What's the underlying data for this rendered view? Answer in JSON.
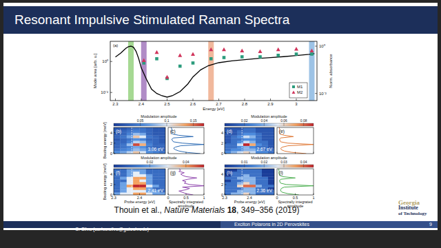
{
  "header": {
    "title": "Resonant Impulsive Stimulated Raman Spectra"
  },
  "citation": {
    "authors": "Thouin et al., ",
    "journal": "Nature Materials",
    "volume": " 18",
    "pages": ", 349–356 (2019)"
  },
  "footer": {
    "author": "C. Silva (carlos.silva@gatech.edu)",
    "talk": "Exciton Polarons in 2D Perovskites",
    "page": "9"
  },
  "logo": {
    "line1": "Georgia",
    "line2": "Institute",
    "line3": "of Technology"
  },
  "chart_data": [
    {
      "type": "scatter",
      "panel_label": "(a)",
      "xlabel": "Energy [eV]",
      "ylabel": "Mode area [arb. u.]",
      "y2label": "Norm. absorbance",
      "xlim": [
        2.28,
        3.08
      ],
      "xticks": [
        2.3,
        2.4,
        2.5,
        2.6,
        2.7,
        2.8,
        2.9,
        3
      ],
      "log": "y",
      "ylim": [
        0.003,
        20
      ],
      "yticks": [
        {
          "value": 0.01,
          "label": "10⁻²"
        },
        {
          "value": 1,
          "label": "10⁰"
        }
      ],
      "y2lim": [
        0.005,
        1.6
      ],
      "y2ticks": [
        {
          "value": 0.01,
          "label": "10⁻²"
        },
        {
          "value": 1,
          "label": "10⁰"
        }
      ],
      "legend": "bottom-right",
      "series": [
        {
          "type": "band",
          "x": [
            2.36,
            2.41,
            2.67,
            3.06
          ],
          "colors": [
            "#6abf4b",
            "#7b3fa0",
            "#e8895a",
            "#5b9bd5"
          ]
        },
        {
          "type": "line",
          "axis": "y2",
          "color": "#000000",
          "x": [
            2.3,
            2.32,
            2.34,
            2.35,
            2.36,
            2.37,
            2.38,
            2.39,
            2.4,
            2.42,
            2.44,
            2.46,
            2.48,
            2.5,
            2.52,
            2.55,
            2.58,
            2.6,
            2.63,
            2.66,
            2.7,
            2.75,
            2.8,
            2.85,
            2.9,
            2.95,
            3.0,
            3.05,
            3.07
          ],
          "values": [
            0.35,
            0.5,
            0.8,
            0.95,
            1.0,
            0.9,
            0.6,
            0.3,
            0.12,
            0.04,
            0.015,
            0.01,
            0.008,
            0.007,
            0.008,
            0.012,
            0.025,
            0.05,
            0.1,
            0.15,
            0.2,
            0.24,
            0.27,
            0.3,
            0.33,
            0.36,
            0.4,
            0.45,
            0.48
          ]
        },
        {
          "name": "M1",
          "type": "scatter",
          "marker": "square",
          "color": "#2c9c7d",
          "x": [
            2.41,
            2.46,
            2.5,
            2.55,
            2.6,
            2.67,
            2.72,
            2.79,
            2.86,
            2.93,
            3.0,
            3.06
          ],
          "values": [
            0.8,
            1.5,
            0.08,
            0.5,
            0.8,
            1.5,
            1.8,
            2,
            2,
            2.5,
            3,
            3
          ]
        },
        {
          "name": "M2",
          "type": "scatter",
          "marker": "triangle",
          "color": "#d1345b",
          "x": [
            2.41,
            2.46,
            2.5,
            2.55,
            2.6,
            2.67,
            2.72,
            2.79,
            2.86,
            2.93,
            3.0,
            3.06
          ],
          "values": [
            1.2,
            4,
            0.1,
            2.5,
            3,
            6,
            6,
            5,
            4.5,
            6,
            6.5,
            5
          ]
        }
      ]
    },
    {
      "type": "heatmap",
      "panel_label": "(b)",
      "annotation": "3.06 eV",
      "ylabel": "Beating energy [meV]",
      "tick_labels": "y",
      "xlim": [
        2.3,
        2.5
      ],
      "xticks": [
        2.3,
        2.4
      ],
      "ylim": [
        0,
        5
      ],
      "yticks": [
        0,
        2,
        4
      ],
      "reference_x": 2.37,
      "x": [
        2.3125,
        2.3375,
        2.3625,
        2.3875,
        2.4125,
        2.4375,
        2.4625,
        2.4875
      ],
      "y": [
        0.25,
        0.75,
        1.25,
        1.75,
        2.25,
        2.75,
        3.25,
        3.75,
        4.25,
        4.75
      ],
      "cells": [
        [
          0.06,
          0.07,
          0.09,
          0.12,
          0.1,
          0.06,
          0.05,
          0.04
        ],
        [
          0.04,
          0.05,
          0.06,
          0.08,
          0.07,
          0.05,
          0.04,
          0.03
        ],
        [
          0.03,
          0.04,
          0.05,
          0.07,
          0.06,
          0.04,
          0.03,
          0.03
        ],
        [
          0.03,
          0.04,
          0.08,
          0.16,
          0.13,
          0.05,
          0.03,
          0.03
        ],
        [
          0.03,
          0.03,
          0.05,
          0.09,
          0.08,
          0.04,
          0.03,
          0.02
        ],
        [
          0.02,
          0.03,
          0.04,
          0.06,
          0.05,
          0.03,
          0.03,
          0.02
        ],
        [
          0.03,
          0.04,
          0.07,
          0.12,
          0.1,
          0.04,
          0.03,
          0.02
        ],
        [
          0.02,
          0.03,
          0.05,
          0.08,
          0.07,
          0.03,
          0.02,
          0.02
        ],
        [
          0.02,
          0.03,
          0.04,
          0.05,
          0.04,
          0.03,
          0.02,
          0.02
        ],
        [
          0.02,
          0.02,
          0.03,
          0.04,
          0.04,
          0.03,
          0.02,
          0.02
        ]
      ],
      "colorbar": {
        "label": "Modulation amplitude",
        "range": [
          0,
          0.17
        ],
        "ticks": [
          0.05,
          0.1,
          0.15
        ]
      }
    },
    {
      "type": "line",
      "panel_label": "(c)",
      "orientation": "horizontal",
      "color": "#2f6db5",
      "tick_labels": false,
      "xlim": [
        0,
        1
      ],
      "xticks": [
        0,
        0.5,
        1
      ],
      "ylim": [
        0,
        5
      ],
      "y": [
        0,
        0.25,
        0.5,
        0.75,
        1,
        1.25,
        1.5,
        1.75,
        2,
        2.25,
        2.5,
        2.75,
        3,
        3.25,
        3.5,
        3.75,
        4,
        4.25,
        4.5,
        4.75,
        5
      ],
      "values": [
        0.9,
        0.5,
        0.3,
        0.2,
        0.15,
        0.2,
        0.35,
        1.0,
        0.4,
        0.15,
        0.12,
        0.1,
        0.15,
        0.7,
        0.3,
        0.12,
        0.1,
        0.08,
        0.12,
        0.1,
        0.08
      ]
    },
    {
      "type": "heatmap",
      "panel_label": "(d)",
      "annotation": "2.67 eV",
      "tick_labels": "y",
      "xlim": [
        2.3,
        2.5
      ],
      "xticks": [
        2.3,
        2.4
      ],
      "ylim": [
        0,
        5
      ],
      "yticks": [
        0,
        2,
        4
      ],
      "reference_x": 2.37,
      "x": [
        2.3125,
        2.3375,
        2.3625,
        2.3875,
        2.4125,
        2.4375,
        2.4625,
        2.4875
      ],
      "y": [
        0.25,
        0.75,
        1.25,
        1.75,
        2.25,
        2.75,
        3.25,
        3.75,
        4.25,
        4.75
      ],
      "cells": [
        [
          0.03,
          0.04,
          0.05,
          0.06,
          0.05,
          0.03,
          0.03,
          0.02
        ],
        [
          0.02,
          0.03,
          0.03,
          0.04,
          0.04,
          0.03,
          0.02,
          0.02
        ],
        [
          0.02,
          0.02,
          0.03,
          0.04,
          0.03,
          0.02,
          0.02,
          0.01
        ],
        [
          0.02,
          0.02,
          0.05,
          0.09,
          0.07,
          0.03,
          0.02,
          0.01
        ],
        [
          0.01,
          0.02,
          0.03,
          0.05,
          0.04,
          0.02,
          0.02,
          0.01
        ],
        [
          0.01,
          0.02,
          0.02,
          0.03,
          0.03,
          0.02,
          0.01,
          0.01
        ],
        [
          0.01,
          0.02,
          0.03,
          0.05,
          0.04,
          0.02,
          0.01,
          0.01
        ],
        [
          0.01,
          0.01,
          0.02,
          0.03,
          0.03,
          0.02,
          0.01,
          0.01
        ],
        [
          0.01,
          0.01,
          0.02,
          0.02,
          0.02,
          0.01,
          0.01,
          0.01
        ],
        [
          0.01,
          0.01,
          0.01,
          0.02,
          0.02,
          0.01,
          0.01,
          0.01
        ]
      ],
      "colorbar": {
        "label": "Modulation amplitude",
        "range": [
          0,
          0.09
        ],
        "ticks": [
          0.02,
          0.04,
          0.06,
          0.08
        ]
      }
    },
    {
      "type": "line",
      "panel_label": "(e)",
      "orientation": "horizontal",
      "color": "#e07b39",
      "tick_labels": false,
      "xlim": [
        0,
        1
      ],
      "xticks": [
        0,
        0.5,
        1
      ],
      "ylim": [
        0,
        5
      ],
      "y": [
        0,
        0.25,
        0.5,
        0.75,
        1,
        1.25,
        1.5,
        1.75,
        2,
        2.25,
        2.5,
        2.75,
        3,
        3.25,
        3.5,
        3.75,
        4,
        4.25,
        4.5,
        4.75,
        5
      ],
      "values": [
        0.8,
        0.4,
        0.2,
        0.12,
        0.1,
        0.15,
        0.3,
        1.0,
        0.3,
        0.1,
        0.08,
        0.07,
        0.1,
        0.45,
        0.2,
        0.08,
        0.07,
        0.06,
        0.08,
        0.07,
        0.06
      ]
    },
    {
      "type": "heatmap",
      "panel_label": "(f)",
      "annotation": "2.41 eV",
      "ylabel": "Beating energy [meV]",
      "xlabel": "Probe energy [eV]",
      "xlim": [
        2.3,
        2.5
      ],
      "xticks": [
        2.3,
        2.4
      ],
      "ylim": [
        0,
        5
      ],
      "yticks": [
        0,
        2,
        4
      ],
      "reference_x": 2.37,
      "x": [
        2.3125,
        2.3375,
        2.3625,
        2.3875,
        2.4125,
        2.4375,
        2.4625,
        2.4875
      ],
      "y": [
        0.25,
        0.75,
        1.25,
        1.75,
        2.25,
        2.75,
        3.25,
        3.75,
        4.25,
        4.75
      ],
      "cells": [
        [
          0.02,
          0.03,
          0.03,
          0.04,
          0.04,
          0.03,
          0.02,
          0.02
        ],
        [
          0.01,
          0.02,
          0.03,
          0.03,
          0.03,
          0.02,
          0.02,
          0.01
        ],
        [
          0.01,
          0.02,
          0.03,
          0.04,
          0.04,
          0.02,
          0.01,
          0.01
        ],
        [
          0.01,
          0.02,
          0.04,
          0.05,
          0.05,
          0.03,
          0.02,
          0.01
        ],
        [
          0.01,
          0.02,
          0.03,
          0.04,
          0.04,
          0.02,
          0.01,
          0.01
        ],
        [
          0.01,
          0.01,
          0.03,
          0.04,
          0.03,
          0.02,
          0.01,
          0.01
        ],
        [
          0.01,
          0.02,
          0.03,
          0.04,
          0.04,
          0.02,
          0.01,
          0.01
        ],
        [
          0.01,
          0.01,
          0.02,
          0.03,
          0.03,
          0.02,
          0.01,
          0.01
        ],
        [
          0.01,
          0.01,
          0.02,
          0.03,
          0.02,
          0.01,
          0.01,
          0.01
        ],
        [
          0.01,
          0.01,
          0.02,
          0.02,
          0.02,
          0.01,
          0.01,
          0.01
        ]
      ],
      "colorbar": {
        "label": "Modulation amplitude",
        "range": [
          0,
          0.05
        ],
        "ticks": [
          0.02,
          0.04
        ]
      }
    },
    {
      "type": "line",
      "panel_label": "(g)",
      "orientation": "horizontal",
      "color": "#8e44ad",
      "tick_labels": "x",
      "xlabel": "Spectrally integrated amplitude",
      "xlim": [
        0,
        1
      ],
      "xticks": [
        0,
        0.5,
        1
      ],
      "ylim": [
        0,
        5
      ],
      "y": [
        0,
        0.25,
        0.5,
        0.75,
        1,
        1.25,
        1.5,
        1.75,
        2,
        2.25,
        2.5,
        2.75,
        3,
        3.25,
        3.5,
        3.75,
        4,
        4.25,
        4.5,
        4.75,
        5
      ],
      "values": [
        0.7,
        0.5,
        0.4,
        0.3,
        0.5,
        0.6,
        0.4,
        1.0,
        0.6,
        0.45,
        0.5,
        0.4,
        0.55,
        0.8,
        0.5,
        0.4,
        0.35,
        0.45,
        0.3,
        0.35,
        0.3
      ]
    },
    {
      "type": "heatmap",
      "panel_label": "(h)",
      "annotation": "2.36 eV",
      "xlabel": "Probe energy [eV]",
      "xlim": [
        2.3,
        2.5
      ],
      "xticks": [
        2.3,
        2.4
      ],
      "ylim": [
        0,
        5
      ],
      "yticks": [
        0,
        2,
        4
      ],
      "reference_x": 2.37,
      "x": [
        2.3125,
        2.3375,
        2.3625,
        2.3875,
        2.4125,
        2.4375,
        2.4625,
        2.4875
      ],
      "y": [
        0.25,
        0.75,
        1.25,
        1.75,
        2.25,
        2.75,
        3.25,
        3.75,
        4.25,
        4.75
      ],
      "cells": [
        [
          0.01,
          0.02,
          0.02,
          0.03,
          0.02,
          0.01,
          0.01,
          0.01
        ],
        [
          0.01,
          0.01,
          0.02,
          0.02,
          0.02,
          0.01,
          0.01,
          0.01
        ],
        [
          0.01,
          0.01,
          0.01,
          0.02,
          0.02,
          0.01,
          0.01,
          0
        ],
        [
          0.01,
          0.01,
          0.03,
          0.04,
          0.04,
          0.02,
          0.01,
          0.01
        ],
        [
          0.01,
          0.01,
          0.02,
          0.03,
          0.02,
          0.01,
          0.01,
          0
        ],
        [
          0,
          0.01,
          0.01,
          0.02,
          0.02,
          0.01,
          0.01,
          0
        ],
        [
          0.01,
          0.01,
          0.02,
          0.02,
          0.02,
          0.01,
          0.01,
          0
        ],
        [
          0,
          0.01,
          0.01,
          0.02,
          0.01,
          0.01,
          0,
          0
        ],
        [
          0,
          0.01,
          0.01,
          0.01,
          0.01,
          0.01,
          0,
          0
        ],
        [
          0,
          0,
          0.01,
          0.01,
          0.01,
          0.01,
          0,
          0
        ]
      ],
      "colorbar": {
        "label": "Modulation amplitude",
        "range": [
          0,
          0.045
        ],
        "ticks": [
          0.01,
          0.02,
          0.03,
          0.04
        ]
      }
    },
    {
      "type": "line",
      "panel_label": "(i)",
      "orientation": "horizontal",
      "color": "#4caf50",
      "tick_labels": "x",
      "xlabel": "Spectrally integrated amplitude",
      "xlim": [
        0,
        1
      ],
      "xticks": [
        0,
        0.5,
        1
      ],
      "ylim": [
        0,
        5
      ],
      "y": [
        0,
        0.25,
        0.5,
        0.75,
        1,
        1.25,
        1.5,
        1.75,
        2,
        2.25,
        2.5,
        2.75,
        3,
        3.25,
        3.5,
        3.75,
        4,
        4.25,
        4.5,
        4.75,
        5
      ],
      "values": [
        0.6,
        0.3,
        0.15,
        0.1,
        0.1,
        0.12,
        0.2,
        1.0,
        0.25,
        0.1,
        0.08,
        0.07,
        0.1,
        0.5,
        0.15,
        0.07,
        0.06,
        0.05,
        0.06,
        0.05,
        0.05
      ]
    }
  ]
}
